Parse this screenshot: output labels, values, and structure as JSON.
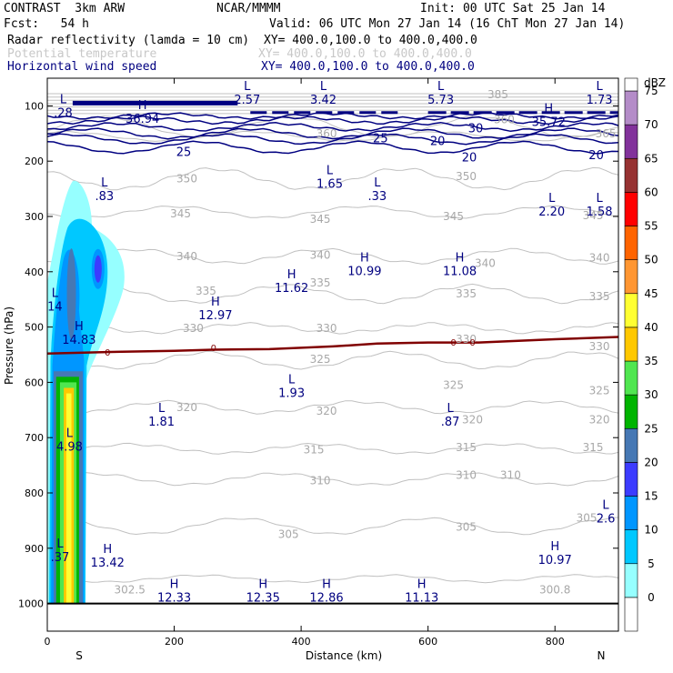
{
  "header": {
    "title": "CONTRAST  3km ARW",
    "org": "NCAR/MMMM",
    "init": "Init: 00 UTC Sat 25 Jan 14",
    "fcst": "Fcst:   54 h",
    "valid": "Valid: 06 UTC Mon 27 Jan 14 (16 ChT Mon 27 Jan 14)",
    "fields": [
      {
        "name": "Radar reflectivity (lamda = 10 cm)",
        "xy": "XY= 400.0,100.0 to 400.0,400.0",
        "color": "#000000"
      },
      {
        "name": "Potential temperature",
        "xy": "XY= 400.0,100.0 to 400.0,400.0",
        "color": "#c8c8c8"
      },
      {
        "name": "Horizontal wind speed",
        "xy": "XY= 400.0,100.0 to 400.0,400.0",
        "color": "#000080"
      }
    ]
  },
  "chart_data": {
    "type": "cross-section",
    "xlabel": "Distance (km)",
    "ylabel": "Pressure (hPa)",
    "xlim": [
      0,
      900
    ],
    "ylim": [
      1050,
      50
    ],
    "x_ticks": [
      "0",
      "200",
      "400",
      "600",
      "800"
    ],
    "y_ticks": [
      "100",
      "200",
      "300",
      "400",
      "500",
      "600",
      "700",
      "800",
      "900",
      "1000"
    ],
    "end_labels": {
      "left": "S",
      "right": "N"
    },
    "colorbar": {
      "unit": "dBZ",
      "levels": [
        "0",
        "5",
        "10",
        "15",
        "20",
        "25",
        "30",
        "35",
        "40",
        "45",
        "50",
        "55",
        "60",
        "65",
        "70",
        "75"
      ],
      "colors": [
        "#ffffff",
        "#96ffff",
        "#00c8ff",
        "#0096ff",
        "#3c3cff",
        "#4678b4",
        "#00b400",
        "#50e650",
        "#ffc800",
        "#ffff32",
        "#ff9632",
        "#ff6400",
        "#ff0000",
        "#963232",
        "#82329b",
        "#b48cc8"
      ]
    },
    "theta_labels": [
      {
        "text": "385",
        "x": 710,
        "p": 80
      },
      {
        "text": "360",
        "x": 720,
        "p": 125
      },
      {
        "text": "365",
        "x": 880,
        "p": 150
      },
      {
        "text": "360",
        "x": 440,
        "p": 150
      },
      {
        "text": "350",
        "x": 220,
        "p": 232
      },
      {
        "text": "350",
        "x": 660,
        "p": 228
      },
      {
        "text": "345",
        "x": 210,
        "p": 295
      },
      {
        "text": "345",
        "x": 430,
        "p": 305
      },
      {
        "text": "345",
        "x": 640,
        "p": 300
      },
      {
        "text": "345",
        "x": 860,
        "p": 298
      },
      {
        "text": "340",
        "x": 220,
        "p": 372
      },
      {
        "text": "340",
        "x": 430,
        "p": 370
      },
      {
        "text": "340",
        "x": 690,
        "p": 385
      },
      {
        "text": "340",
        "x": 870,
        "p": 375
      },
      {
        "text": "335",
        "x": 250,
        "p": 435
      },
      {
        "text": "335",
        "x": 430,
        "p": 420
      },
      {
        "text": "335",
        "x": 660,
        "p": 440
      },
      {
        "text": "335",
        "x": 870,
        "p": 445
      },
      {
        "text": "330",
        "x": 230,
        "p": 502
      },
      {
        "text": "330",
        "x": 440,
        "p": 502
      },
      {
        "text": "330",
        "x": 660,
        "p": 522
      },
      {
        "text": "330",
        "x": 870,
        "p": 535
      },
      {
        "text": "325",
        "x": 430,
        "p": 558
      },
      {
        "text": "325",
        "x": 640,
        "p": 605
      },
      {
        "text": "325",
        "x": 870,
        "p": 615
      },
      {
        "text": "320",
        "x": 220,
        "p": 645
      },
      {
        "text": "320",
        "x": 440,
        "p": 652
      },
      {
        "text": "320",
        "x": 670,
        "p": 668
      },
      {
        "text": "320",
        "x": 870,
        "p": 668
      },
      {
        "text": "315",
        "x": 420,
        "p": 722
      },
      {
        "text": "315",
        "x": 660,
        "p": 718
      },
      {
        "text": "315",
        "x": 860,
        "p": 718
      },
      {
        "text": "310",
        "x": 430,
        "p": 778
      },
      {
        "text": "310",
        "x": 660,
        "p": 768
      },
      {
        "text": "310",
        "x": 730,
        "p": 768
      },
      {
        "text": "305",
        "x": 380,
        "p": 875
      },
      {
        "text": "305",
        "x": 660,
        "p": 862
      },
      {
        "text": "305",
        "x": 850,
        "p": 845
      },
      {
        "text": "302.5",
        "x": 130,
        "p": 975
      },
      {
        "text": "300.8",
        "x": 800,
        "p": 975
      }
    ],
    "wind_labels": [
      {
        "text": "25",
        "x": 215,
        "p": 182
      },
      {
        "text": "25",
        "x": 525,
        "p": 158
      },
      {
        "text": "20",
        "x": 615,
        "p": 163
      },
      {
        "text": "20",
        "x": 665,
        "p": 192
      },
      {
        "text": "30",
        "x": 675,
        "p": 140
      },
      {
        "text": "20",
        "x": 865,
        "p": 188
      }
    ],
    "zero_dbz_labels": [
      {
        "text": "0",
        "x": 95,
        "p": 545
      },
      {
        "text": "0",
        "x": 262,
        "p": 537
      },
      {
        "text": "0",
        "x": 640,
        "p": 527
      },
      {
        "text": "0",
        "x": 670,
        "p": 527
      }
    ],
    "extrema": [
      {
        "kind": "H",
        "value": "36.94",
        "x": 150,
        "p": 122
      },
      {
        "kind": "L",
        "value": "2.57",
        "x": 315,
        "p": 88
      },
      {
        "kind": "L",
        "value": "3.42",
        "x": 435,
        "p": 88
      },
      {
        "kind": "L",
        "value": "5.73",
        "x": 620,
        "p": 88
      },
      {
        "kind": "L",
        "value": "1.73",
        "x": 870,
        "p": 88
      },
      {
        "kind": "H",
        "value": "35.72",
        "x": 790,
        "p": 128
      },
      {
        "kind": "L",
        "value": ".28",
        "x": 25,
        "p": 112
      },
      {
        "kind": "L",
        "value": ".83",
        "x": 90,
        "p": 262
      },
      {
        "kind": "L",
        "value": "1.65",
        "x": 445,
        "p": 240
      },
      {
        "kind": "L",
        "value": ".33",
        "x": 520,
        "p": 262
      },
      {
        "kind": "L",
        "value": "2.20",
        "x": 795,
        "p": 290
      },
      {
        "kind": "L",
        "value": "1.58",
        "x": 870,
        "p": 290
      },
      {
        "kind": "H",
        "value": "10.99",
        "x": 500,
        "p": 398
      },
      {
        "kind": "H",
        "value": "11.08",
        "x": 650,
        "p": 398
      },
      {
        "kind": "H",
        "value": "11.62",
        "x": 385,
        "p": 428
      },
      {
        "kind": "H",
        "value": "12.97",
        "x": 265,
        "p": 478
      },
      {
        "kind": "L",
        "value": "14",
        "x": 12,
        "p": 462
      },
      {
        "kind": "H",
        "value": "14.83",
        "x": 50,
        "p": 522
      },
      {
        "kind": "L",
        "value": "1.93",
        "x": 385,
        "p": 618
      },
      {
        "kind": "L",
        "value": "1.81",
        "x": 180,
        "p": 670
      },
      {
        "kind": "L",
        "value": ".87",
        "x": 635,
        "p": 670
      },
      {
        "kind": "L",
        "value": "4.98",
        "x": 35,
        "p": 715
      },
      {
        "kind": "L",
        "value": "2.6",
        "x": 880,
        "p": 845
      },
      {
        "kind": "L",
        "value": ".37",
        "x": 20,
        "p": 915
      },
      {
        "kind": "H",
        "value": "13.42",
        "x": 95,
        "p": 925
      },
      {
        "kind": "H",
        "value": "10.97",
        "x": 800,
        "p": 920
      },
      {
        "kind": "H",
        "value": "12.33",
        "x": 200,
        "p": 988
      },
      {
        "kind": "H",
        "value": "12.35",
        "x": 340,
        "p": 988
      },
      {
        "kind": "H",
        "value": "12.86",
        "x": 440,
        "p": 988
      },
      {
        "kind": "H",
        "value": "11.13",
        "x": 590,
        "p": 988
      }
    ]
  }
}
